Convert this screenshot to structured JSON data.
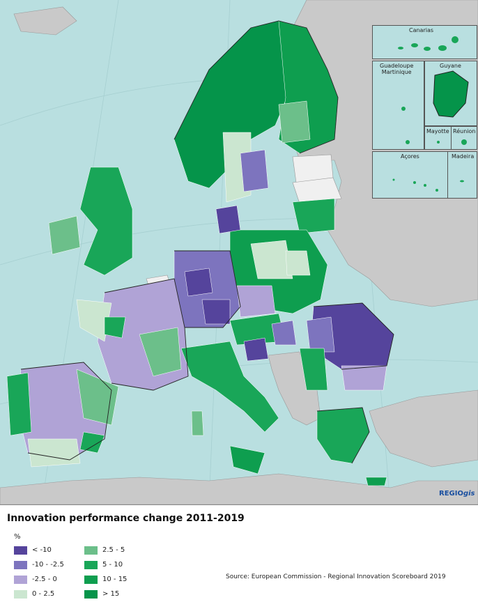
{
  "map": {
    "sea_color": "#b9dfe0",
    "non_eu_color": "#c9c9c9",
    "no_data_color": "#f0f0f0",
    "insets": {
      "canarias": "Canarias",
      "guadeloupe_martinique": "Guadeloupe\nMartinique",
      "guyane": "Guyane",
      "mayotte": "Mayotte",
      "reunion": "Réunion",
      "acores": "Açores",
      "madeira": "Madeira"
    },
    "logo": {
      "bold": "REGIO",
      "italic": "gis"
    }
  },
  "legend": {
    "title": "Innovation performance change 2011-2019",
    "unit": "%",
    "classes": [
      {
        "label": "< -10",
        "color": "#55449c"
      },
      {
        "label": "-10 - -2.5",
        "color": "#7d74be"
      },
      {
        "label": "-2.5 - 0",
        "color": "#b0a3d6"
      },
      {
        "label": "0 - 2.5",
        "color": "#cbe6d0"
      },
      {
        "label": "2.5 - 5",
        "color": "#6cbf8a"
      },
      {
        "label": "5 - 10",
        "color": "#19a658"
      },
      {
        "label": "10 - 15",
        "color": "#0e9e4f"
      },
      {
        "label": "> 15",
        "color": "#05944a"
      }
    ]
  },
  "source": "Source: European Commission - Regional Innovation Scoreboard 2019"
}
